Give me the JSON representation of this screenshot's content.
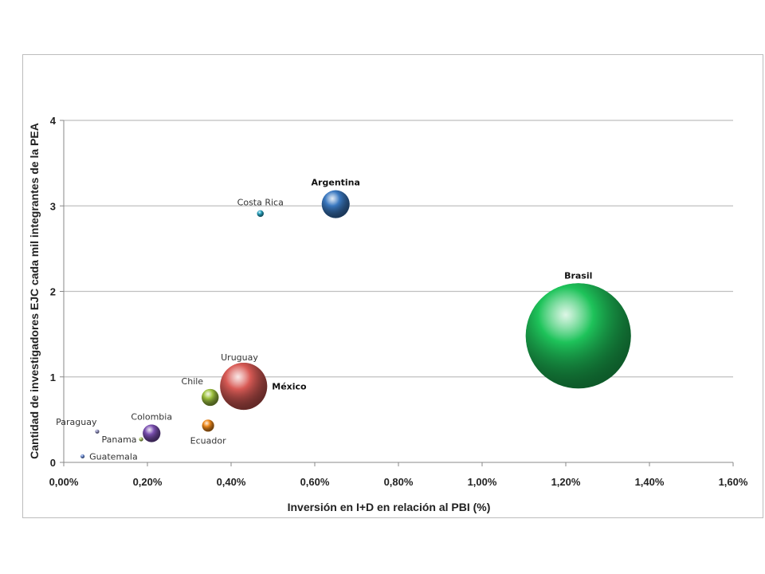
{
  "chart_data": {
    "type": "scatter",
    "variant": "bubble",
    "title": "",
    "xlabel": "Inversión en I+D en relación al PBI (%)",
    "ylabel": "Cantidad de investigadores EJC cada mil integrantes de la  PEA",
    "xlim": [
      0,
      1.6
    ],
    "ylim": [
      0,
      4
    ],
    "x_ticks": [
      0,
      0.2,
      0.4,
      0.6,
      0.8,
      1.0,
      1.2,
      1.4,
      1.6
    ],
    "x_tick_labels": [
      "0,00%",
      "0,20%",
      "0,40%",
      "0,60%",
      "0,80%",
      "1,00%",
      "1,20%",
      "1,40%",
      "1,60%"
    ],
    "y_ticks": [
      0,
      1,
      2,
      3,
      4
    ],
    "y_tick_labels": [
      "0",
      "1",
      "2",
      "3",
      "4"
    ],
    "grid": "horizontal",
    "legend": "none",
    "points": [
      {
        "label": "Argentina",
        "x": 0.65,
        "y": 3.02,
        "size": 7,
        "color": "#3a78c0",
        "bold": true,
        "label_pos": "top"
      },
      {
        "label": "Costa Rica",
        "x": 0.47,
        "y": 2.91,
        "size": 0.4,
        "color": "#2aa7c4",
        "bold": false,
        "label_pos": "top"
      },
      {
        "label": "Brasil",
        "x": 1.23,
        "y": 1.48,
        "size": 100,
        "color": "#1ec35a",
        "bold": true,
        "label_pos": "top"
      },
      {
        "label": "Uruguay",
        "x": 0.42,
        "y": 1.1,
        "size": 0.4,
        "color": "#2aa7c4",
        "bold": false,
        "label_pos": "top"
      },
      {
        "label": "México",
        "x": 0.43,
        "y": 0.89,
        "size": 20,
        "color": "#d85a55",
        "bold": true,
        "label_pos": "right"
      },
      {
        "label": "Chile",
        "x": 0.35,
        "y": 0.76,
        "size": 2.6,
        "color": "#9ec23f",
        "bold": false,
        "label_pos": "top-left"
      },
      {
        "label": "Colombia",
        "x": 0.21,
        "y": 0.34,
        "size": 2.8,
        "color": "#7a4fb0",
        "bold": false,
        "label_pos": "top"
      },
      {
        "label": "Ecuador",
        "x": 0.345,
        "y": 0.43,
        "size": 1.3,
        "color": "#f08a1c",
        "bold": false,
        "label_pos": "bottom"
      },
      {
        "label": "Paraguay",
        "x": 0.08,
        "y": 0.36,
        "size": 0.06,
        "color": "#8f8fc0",
        "bold": false,
        "label_pos": "top-left"
      },
      {
        "label": "Panama",
        "x": 0.185,
        "y": 0.27,
        "size": 0.15,
        "color": "#a8c460",
        "bold": false,
        "label_pos": "left"
      },
      {
        "label": "Guatemala",
        "x": 0.045,
        "y": 0.07,
        "size": 0.08,
        "color": "#6f8fd8",
        "bold": false,
        "label_pos": "right"
      }
    ]
  }
}
